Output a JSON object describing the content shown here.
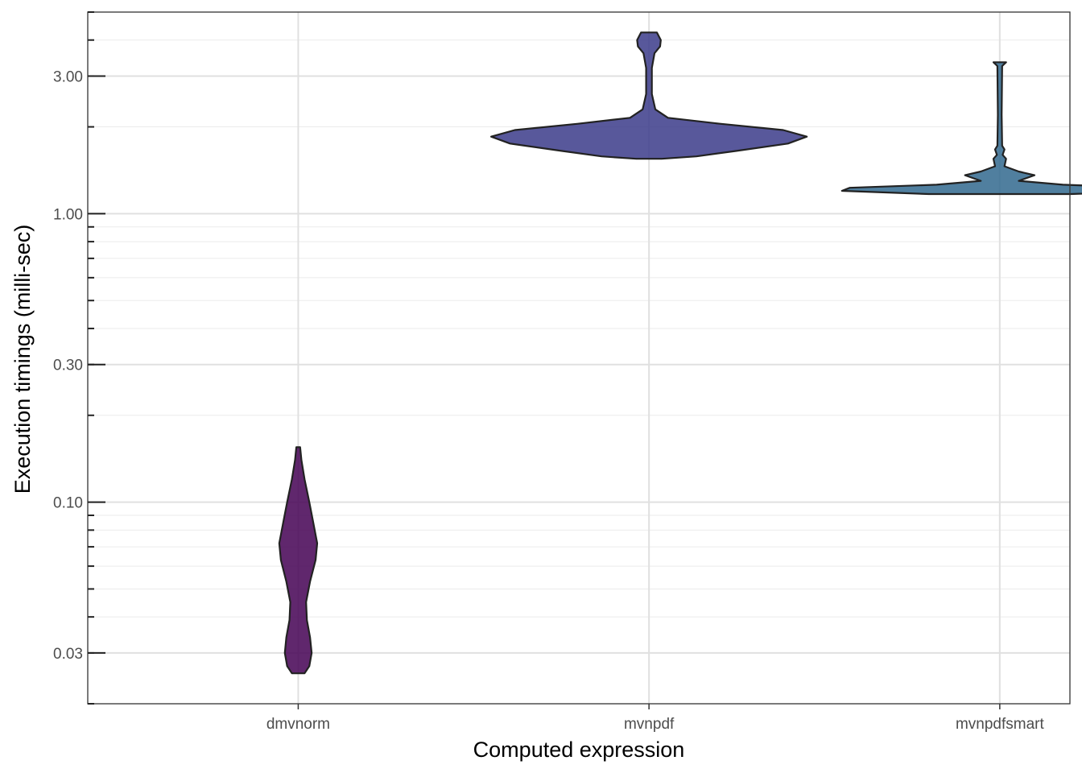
{
  "chart_data": {
    "type": "violin",
    "title": "",
    "xlabel": "Computed expression",
    "ylabel": "Execution timings (milli-sec)",
    "y_scale": "log10",
    "ylim": [
      0.02,
      5.0
    ],
    "y_tick_labels": [
      "0.03",
      "0.10",
      "0.30",
      "1.00",
      "3.00"
    ],
    "y_tick_values": [
      0.03,
      0.1,
      0.3,
      1.0,
      3.0
    ],
    "categories": [
      "dmvnorm",
      "mvnpdf",
      "mvnpdfsmart"
    ],
    "series": [
      {
        "name": "dmvnorm",
        "color": "#440154",
        "min": 0.0255,
        "max": 0.155,
        "density": [
          {
            "y": 0.0255,
            "w": 0.04
          },
          {
            "y": 0.027,
            "w": 0.07
          },
          {
            "y": 0.03,
            "w": 0.085
          },
          {
            "y": 0.034,
            "w": 0.075
          },
          {
            "y": 0.039,
            "w": 0.055
          },
          {
            "y": 0.045,
            "w": 0.05
          },
          {
            "y": 0.053,
            "w": 0.075
          },
          {
            "y": 0.063,
            "w": 0.11
          },
          {
            "y": 0.072,
            "w": 0.12
          },
          {
            "y": 0.085,
            "w": 0.095
          },
          {
            "y": 0.1,
            "w": 0.07
          },
          {
            "y": 0.12,
            "w": 0.04
          },
          {
            "y": 0.14,
            "w": 0.02
          },
          {
            "y": 0.155,
            "w": 0.012
          }
        ]
      },
      {
        "name": "mvnpdf",
        "color": "#3b3b8a",
        "min": 1.55,
        "max": 4.25,
        "density": [
          {
            "y": 1.55,
            "w": 0.08
          },
          {
            "y": 1.58,
            "w": 0.3
          },
          {
            "y": 1.65,
            "w": 0.55
          },
          {
            "y": 1.75,
            "w": 0.88
          },
          {
            "y": 1.85,
            "w": 1.0
          },
          {
            "y": 1.95,
            "w": 0.85
          },
          {
            "y": 2.05,
            "w": 0.45
          },
          {
            "y": 2.15,
            "w": 0.12
          },
          {
            "y": 2.3,
            "w": 0.04
          },
          {
            "y": 2.6,
            "w": 0.018
          },
          {
            "y": 3.2,
            "w": 0.018
          },
          {
            "y": 3.6,
            "w": 0.035
          },
          {
            "y": 3.8,
            "w": 0.07
          },
          {
            "y": 4.0,
            "w": 0.075
          },
          {
            "y": 4.25,
            "w": 0.05
          }
        ]
      },
      {
        "name": "mvnpdfsmart",
        "color": "#31688e",
        "min": 1.17,
        "max": 3.35,
        "density": [
          {
            "y": 1.17,
            "w": 0.45
          },
          {
            "y": 1.2,
            "w": 1.0
          },
          {
            "y": 1.23,
            "w": 0.95
          },
          {
            "y": 1.26,
            "w": 0.4
          },
          {
            "y": 1.3,
            "w": 0.12
          },
          {
            "y": 1.36,
            "w": 0.22
          },
          {
            "y": 1.4,
            "w": 0.12
          },
          {
            "y": 1.46,
            "w": 0.03
          },
          {
            "y": 1.55,
            "w": 0.04
          },
          {
            "y": 1.6,
            "w": 0.018
          },
          {
            "y": 1.67,
            "w": 0.03
          },
          {
            "y": 1.72,
            "w": 0.015
          },
          {
            "y": 2.2,
            "w": 0.012
          },
          {
            "y": 3.25,
            "w": 0.015
          },
          {
            "y": 3.35,
            "w": 0.04
          }
        ]
      }
    ],
    "grid": true,
    "legend": "none"
  }
}
